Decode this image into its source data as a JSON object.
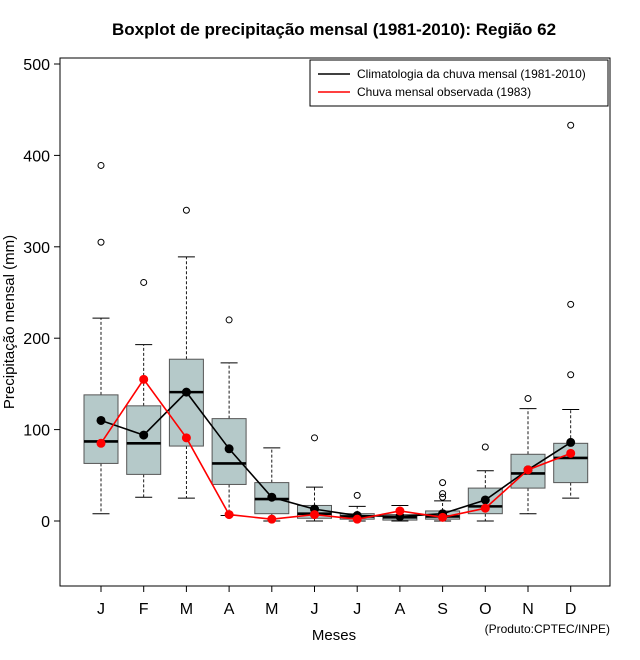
{
  "chart_data": {
    "type": "boxplot",
    "title": "Boxplot de precipitação mensal (1981-2010): Região 62",
    "xlabel": "Meses",
    "ylabel": "Precipitação mensal (mm)",
    "ylim": [
      -70,
      510
    ],
    "yticks": [
      0,
      100,
      200,
      300,
      400,
      500
    ],
    "categories": [
      "J",
      "F",
      "M",
      "A",
      "M",
      "J",
      "J",
      "A",
      "S",
      "O",
      "N",
      "D"
    ],
    "credit": "(Produto:CPTEC/INPE)",
    "legend": {
      "position": "top-right",
      "entries": [
        {
          "label": "Climatologia da chuva mensal (1981-2010)",
          "color": "#000000"
        },
        {
          "label": "Chuva mensal observada (1983)",
          "color": "#ff0000"
        }
      ]
    },
    "colors": {
      "box_fill": "#b5c9c9",
      "climatology": "#000000",
      "observed": "#ff0000"
    },
    "boxes": [
      {
        "month": "J",
        "whisker_low": 8,
        "q1": 63,
        "median": 87,
        "q3": 138,
        "whisker_high": 222,
        "outliers": [
          305,
          389
        ]
      },
      {
        "month": "F",
        "whisker_low": 26,
        "q1": 51,
        "median": 85,
        "q3": 126,
        "whisker_high": 193,
        "outliers": [
          261
        ]
      },
      {
        "month": "M",
        "whisker_low": 25,
        "q1": 82,
        "median": 141,
        "q3": 177,
        "whisker_high": 289,
        "outliers": [
          340
        ]
      },
      {
        "month": "A",
        "whisker_low": 6,
        "q1": 40,
        "median": 63,
        "q3": 112,
        "whisker_high": 173,
        "outliers": [
          220
        ]
      },
      {
        "month": "M",
        "whisker_low": 0,
        "q1": 8,
        "median": 24,
        "q3": 42,
        "whisker_high": 80,
        "outliers": []
      },
      {
        "month": "J",
        "whisker_low": 0,
        "q1": 3,
        "median": 8,
        "q3": 17,
        "whisker_high": 37,
        "outliers": [
          91
        ]
      },
      {
        "month": "J",
        "whisker_low": 0,
        "q1": 2,
        "median": 5,
        "q3": 8,
        "whisker_high": 16,
        "outliers": [
          28
        ]
      },
      {
        "month": "A",
        "whisker_low": 0,
        "q1": 1,
        "median": 4,
        "q3": 7,
        "whisker_high": 17,
        "outliers": []
      },
      {
        "month": "S",
        "whisker_low": 0,
        "q1": 2,
        "median": 5,
        "q3": 11,
        "whisker_high": 22,
        "outliers": [
          26,
          30,
          42
        ]
      },
      {
        "month": "O",
        "whisker_low": 0,
        "q1": 8,
        "median": 16,
        "q3": 36,
        "whisker_high": 55,
        "outliers": [
          81
        ]
      },
      {
        "month": "N",
        "whisker_low": 8,
        "q1": 36,
        "median": 52,
        "q3": 73,
        "whisker_high": 123,
        "outliers": [
          134
        ]
      },
      {
        "month": "D",
        "whisker_low": 25,
        "q1": 42,
        "median": 69,
        "q3": 85,
        "whisker_high": 122,
        "outliers": [
          160,
          237,
          433
        ]
      }
    ],
    "series": [
      {
        "name": "Climatologia da chuva mensal (1981-2010)",
        "values": [
          110,
          94,
          141,
          79,
          26,
          13,
          6,
          5,
          8,
          23,
          56,
          86
        ]
      },
      {
        "name": "Chuva mensal observada (1983)",
        "values": [
          85,
          155,
          91,
          7,
          2,
          7,
          2,
          11,
          4,
          14,
          56,
          74
        ]
      }
    ]
  }
}
